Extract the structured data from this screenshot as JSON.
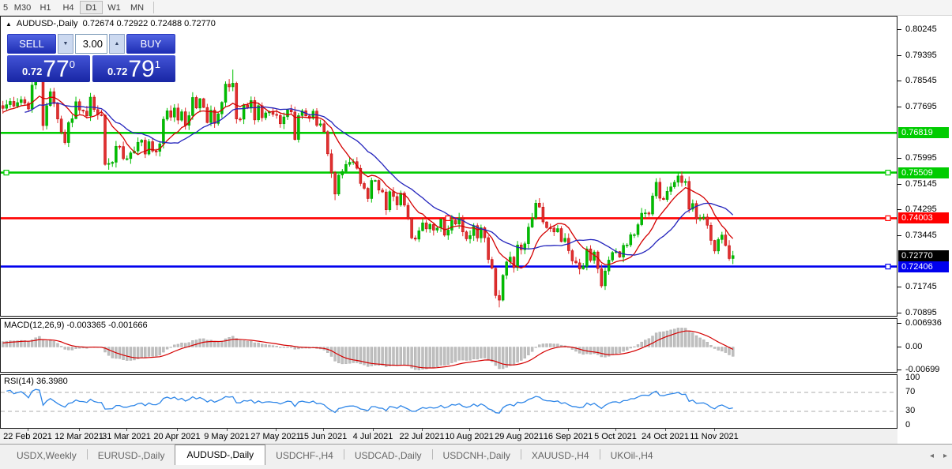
{
  "toolbar": {
    "items": [
      "5",
      "M30",
      "H1",
      "H4",
      "D1",
      "W1",
      "MN"
    ],
    "active": "D1"
  },
  "chart_header": {
    "collapse_icon": "▲",
    "symbol_label": "AUDUSD-,Daily",
    "open": "0.72674",
    "high": "0.72922",
    "low": "0.72488",
    "close": "0.72770"
  },
  "trade_panel": {
    "sell_label": "SELL",
    "buy_label": "BUY",
    "volume": "3.00",
    "sell_price": {
      "prefix": "0.72",
      "big": "77",
      "sup": "0"
    },
    "buy_price": {
      "prefix": "0.72",
      "big": "79",
      "sup": "1"
    },
    "arrow_down": "▼",
    "arrow_up": "▲"
  },
  "price_axis": {
    "ticks": [
      {
        "label": "0.80245",
        "value": 0.80245
      },
      {
        "label": "0.79395",
        "value": 0.79395
      },
      {
        "label": "0.78545",
        "value": 0.78545
      },
      {
        "label": "0.77695",
        "value": 0.77695
      },
      {
        "label": "0.75995",
        "value": 0.75995
      },
      {
        "label": "0.75145",
        "value": 0.75145
      },
      {
        "label": "0.74295",
        "value": 0.74295
      },
      {
        "label": "0.73445",
        "value": 0.73445
      },
      {
        "label": "0.71745",
        "value": 0.71745
      },
      {
        "label": "0.70895",
        "value": 0.70895
      }
    ],
    "badges": [
      {
        "label": "0.76819",
        "value": 0.76819,
        "bg": "#00CC00"
      },
      {
        "label": "0.75509",
        "value": 0.75509,
        "bg": "#00CC00"
      },
      {
        "label": "0.74003",
        "value": 0.74003,
        "bg": "#FF0000"
      },
      {
        "label": "0.72406",
        "value": 0.72406,
        "bg": "#0000EE"
      },
      {
        "label": "0.72770",
        "value": 0.7277,
        "bg": "#000000"
      }
    ]
  },
  "chart_data": {
    "type": "candlestick",
    "title": "AUDUSD-,Daily",
    "ylim": [
      0.7078,
      0.8066
    ],
    "first_open": 0.778,
    "closes": [
      0.7761,
      0.784,
      0.7875,
      0.787,
      0.7706,
      0.7772,
      0.7818,
      0.7779,
      0.7728,
      0.7685,
      0.765,
      0.7716,
      0.7729,
      0.7785,
      0.7757,
      0.7754,
      0.7738,
      0.78,
      0.7759,
      0.7742,
      0.774,
      0.7578,
      0.7581,
      0.7585,
      0.7638,
      0.7637,
      0.7597,
      0.7597,
      0.7616,
      0.7622,
      0.7651,
      0.7658,
      0.7612,
      0.7653,
      0.7622,
      0.7621,
      0.7646,
      0.7727,
      0.7755,
      0.7734,
      0.7764,
      0.7724,
      0.7752,
      0.7707,
      0.7739,
      0.7799,
      0.7764,
      0.7795,
      0.7766,
      0.7716,
      0.7757,
      0.7713,
      0.7745,
      0.7783,
      0.7843,
      0.7834,
      0.7846,
      0.7728,
      0.7727,
      0.7774,
      0.7764,
      0.7789,
      0.7725,
      0.7772,
      0.7732,
      0.7748,
      0.7751,
      0.7743,
      0.774,
      0.7712,
      0.7735,
      0.7758,
      0.7751,
      0.766,
      0.7739,
      0.7755,
      0.7738,
      0.773,
      0.7754,
      0.7707,
      0.7712,
      0.7686,
      0.7613,
      0.7551,
      0.748,
      0.7543,
      0.7555,
      0.7578,
      0.7585,
      0.7587,
      0.7565,
      0.7515,
      0.7499,
      0.7465,
      0.7525,
      0.7525,
      0.7493,
      0.7487,
      0.7428,
      0.7488,
      0.7472,
      0.7444,
      0.7483,
      0.7443,
      0.7401,
      0.7335,
      0.7331,
      0.7359,
      0.7385,
      0.7365,
      0.738,
      0.7361,
      0.7368,
      0.7397,
      0.7344,
      0.7361,
      0.7394,
      0.7381,
      0.7401,
      0.7355,
      0.7332,
      0.7343,
      0.7376,
      0.7335,
      0.7369,
      0.7336,
      0.7264,
      0.7235,
      0.7145,
      0.713,
      0.7212,
      0.7256,
      0.7272,
      0.7237,
      0.7312,
      0.7296,
      0.7316,
      0.7371,
      0.7401,
      0.745,
      0.7437,
      0.7388,
      0.7369,
      0.7368,
      0.7355,
      0.7366,
      0.7323,
      0.7334,
      0.7293,
      0.7259,
      0.7253,
      0.7233,
      0.7241,
      0.7299,
      0.7261,
      0.7289,
      0.7234,
      0.7177,
      0.7226,
      0.7262,
      0.7287,
      0.729,
      0.7272,
      0.7311,
      0.7312,
      0.7346,
      0.7346,
      0.7379,
      0.7417,
      0.7418,
      0.7414,
      0.7474,
      0.7519,
      0.7466,
      0.7462,
      0.7489,
      0.7504,
      0.7519,
      0.754,
      0.7518,
      0.7522,
      0.743,
      0.7449,
      0.7398,
      0.7401,
      0.7404,
      0.7377,
      0.7327,
      0.7292,
      0.733,
      0.7345,
      0.731,
      0.7267,
      0.7277
    ],
    "wick_overrides": {
      "2": {
        "high": 0.7886
      },
      "56": {
        "high": 0.7891
      },
      "84": {
        "low": 0.746
      },
      "129": {
        "low": 0.7106
      },
      "157": {
        "low": 0.717
      },
      "178": {
        "high": 0.7553
      },
      "193": {
        "high": 0.72922,
        "low": 0.72488
      }
    },
    "x_labels": [
      {
        "label": "22 Feb 2021",
        "index": 0
      },
      {
        "label": "12 Mar 2021",
        "index": 14
      },
      {
        "label": "31 Mar 2021",
        "index": 27
      },
      {
        "label": "20 Apr 2021",
        "index": 41
      },
      {
        "label": "9 May 2021",
        "index": 54.6
      },
      {
        "label": "27 May 2021",
        "index": 68
      },
      {
        "label": "15 Jun 2021",
        "index": 81
      },
      {
        "label": "4 Jul 2021",
        "index": 94.6
      },
      {
        "label": "22 Jul 2021",
        "index": 108
      },
      {
        "label": "10 Aug 2021",
        "index": 121
      },
      {
        "label": "29 Aug 2021",
        "index": 134.6
      },
      {
        "label": "16 Sep 2021",
        "index": 148
      },
      {
        "label": "5 Oct 2021",
        "index": 161
      },
      {
        "label": "24 Oct 2021",
        "index": 174.6
      },
      {
        "label": "11 Nov 2021",
        "index": 188
      }
    ],
    "h_lines": [
      {
        "value": 0.76819,
        "color": "#00CC00",
        "handles": []
      },
      {
        "value": 0.75509,
        "color": "#00CC00",
        "handles": [
          "left",
          "right"
        ]
      },
      {
        "value": 0.74003,
        "color": "#FF0000",
        "handles": [
          "center",
          "right"
        ]
      },
      {
        "value": 0.72406,
        "color": "#0000EE",
        "handles": [
          "right"
        ]
      }
    ],
    "current_price": 0.7277,
    "moving_averages": [
      {
        "type": "sma",
        "period": 10,
        "color": "#D40000"
      },
      {
        "type": "sma",
        "period": 21,
        "color": "#2323BC"
      }
    ],
    "colors": {
      "bull": "#00C000",
      "bull_stroke": "#009A00",
      "bear": "#E03030",
      "bear_stroke": "#C00000"
    },
    "indicators": {
      "macd": {
        "name": "MACD(12,26,9)",
        "value_main": "-0.003365",
        "value_signal": "-0.001666",
        "params": [
          12,
          26,
          9
        ],
        "scale": {
          "max_label": "0.006936",
          "zero_label": "0.00",
          "min_label": "-0.00699",
          "max": 0.006936,
          "min": -0.00699
        },
        "bar_color": "#BFBFBF",
        "signal_color": "#D40000"
      },
      "rsi": {
        "name": "RSI(14)",
        "value": "36.3980",
        "period": 14,
        "levels": [
          70,
          30
        ],
        "scale": [
          100,
          70,
          30,
          0
        ],
        "line_color": "#2E86E8",
        "level_color": "#ABABAB"
      }
    }
  },
  "tabs": {
    "items": [
      "USDX,Weekly",
      "EURUSD-,Daily",
      "AUDUSD-,Daily",
      "USDCHF-,H4",
      "USDCAD-,Daily",
      "USDCNH-,Daily",
      "XAUUSD-,H4",
      "UKOil-,H4"
    ],
    "active": "AUDUSD-,Daily",
    "nav_left": "◂",
    "nav_right": "▸"
  }
}
